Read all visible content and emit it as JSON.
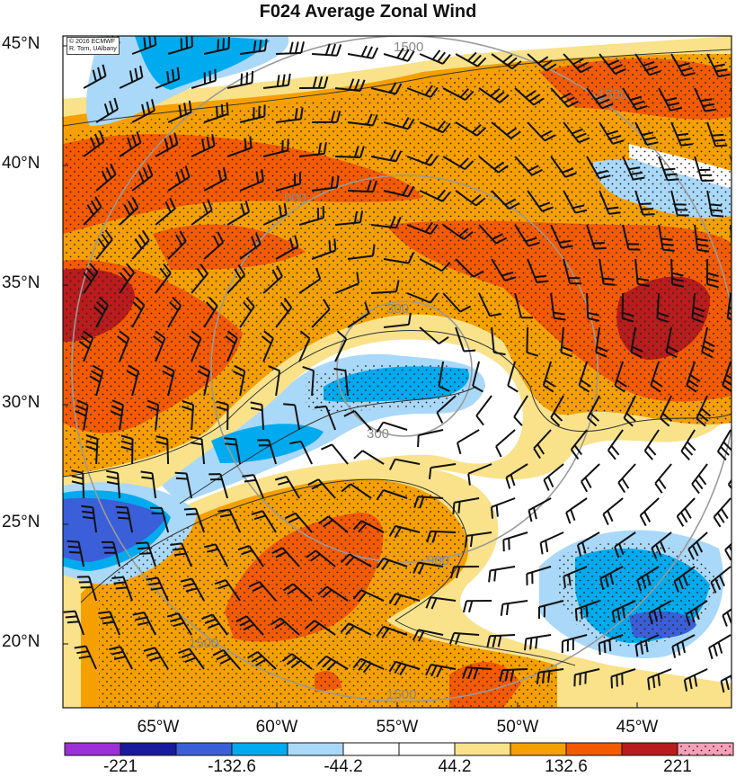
{
  "title": "F024 Average Zonal Wind",
  "credit": {
    "line1": "© 2016 ECMWF",
    "line2": "R. Torn, UAlbany"
  },
  "lat_labels": [
    "45°N",
    "40°N",
    "35°N",
    "30°N",
    "25°N",
    "20°N"
  ],
  "lon_labels": [
    "65°W",
    "60°W",
    "55°W",
    "50°W",
    "45°W"
  ],
  "contour_labels": [
    "1500",
    "900",
    "300",
    "300",
    "900",
    "1500",
    "1500",
    "1500"
  ],
  "colorbar": {
    "labels": [
      "-221",
      "-132.6",
      "-44.2",
      "44.2",
      "132.6",
      "221"
    ],
    "colors": [
      "#9b30d9",
      "#1a1a9e",
      "#3a5fd9",
      "#00aaee",
      "#aad8f8",
      "#ffffff",
      "#ffffff",
      "#f9e28a",
      "#f5a000",
      "#f45a00",
      "#b81c1c",
      "#f6a0b8"
    ]
  }
}
